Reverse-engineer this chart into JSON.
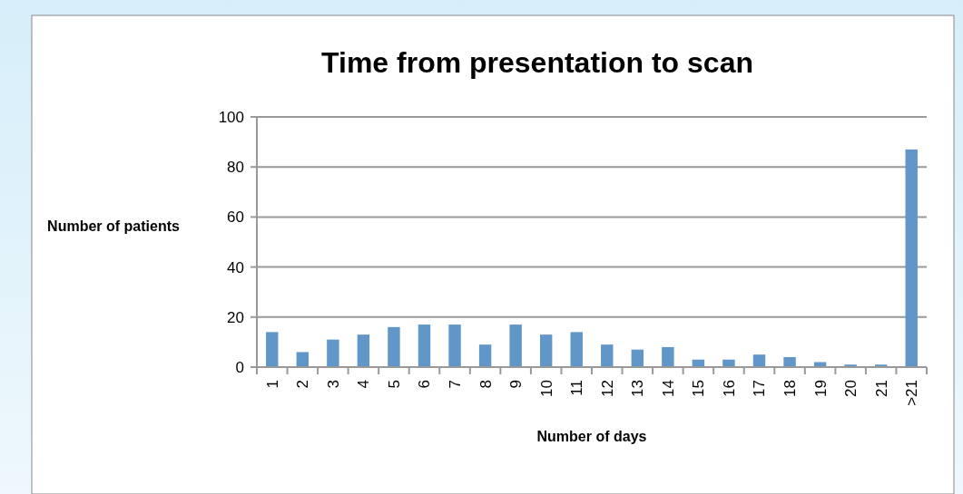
{
  "chart_data": {
    "type": "bar",
    "title": "Time from presentation to scan",
    "xlabel": "Number of days",
    "ylabel": "Number of patients",
    "categories": [
      "1",
      "2",
      "3",
      "4",
      "5",
      "6",
      "7",
      "8",
      "9",
      "10",
      "11",
      "12",
      "13",
      "14",
      "15",
      "16",
      "17",
      "18",
      "19",
      "20",
      "21",
      ">21"
    ],
    "values": [
      14,
      6,
      11,
      13,
      16,
      17,
      17,
      9,
      17,
      13,
      14,
      9,
      7,
      8,
      3,
      3,
      5,
      4,
      2,
      1,
      1,
      87
    ],
    "color": "#6096c8",
    "ylim": [
      0,
      100
    ],
    "yticks": [
      0,
      20,
      40,
      60,
      80,
      100
    ],
    "grid": "y"
  }
}
